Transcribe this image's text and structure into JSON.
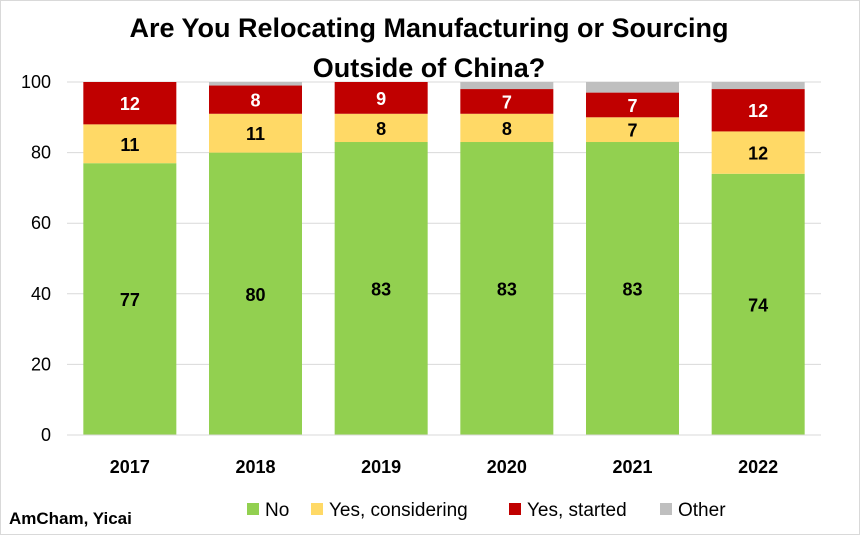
{
  "chart_data": {
    "type": "bar",
    "stacked": true,
    "title_lines": [
      "Are You Relocating Manufacturing or Sourcing",
      "Outside of China?"
    ],
    "categories": [
      "2017",
      "2018",
      "2019",
      "2020",
      "2021",
      "2022"
    ],
    "series": [
      {
        "name": "No",
        "color": "#92d050",
        "values": [
          77,
          80,
          83,
          83,
          83,
          74
        ],
        "labels": [
          "77",
          "80",
          "83",
          "83",
          "83",
          "74"
        ]
      },
      {
        "name": "Yes, considering",
        "color": "#ffd966",
        "values": [
          11,
          11,
          8,
          8,
          7,
          12
        ],
        "labels": [
          "11",
          "11",
          "8",
          "8",
          "7",
          "12"
        ]
      },
      {
        "name": "Yes, started",
        "color": "#c00000",
        "values": [
          12,
          8,
          9,
          7,
          7,
          12
        ],
        "labels": [
          "12",
          "8",
          "9",
          "7",
          "7",
          "12"
        ]
      },
      {
        "name": "Other",
        "color": "#bfbfbf",
        "values": [
          0,
          1,
          0,
          2,
          3,
          2
        ]
      }
    ],
    "ylim": [
      0,
      100
    ],
    "yticks": [
      "0",
      "20",
      "40",
      "60",
      "80",
      "100"
    ],
    "grid": true,
    "legend": "bottom",
    "source": "AmCham, Yicai"
  }
}
